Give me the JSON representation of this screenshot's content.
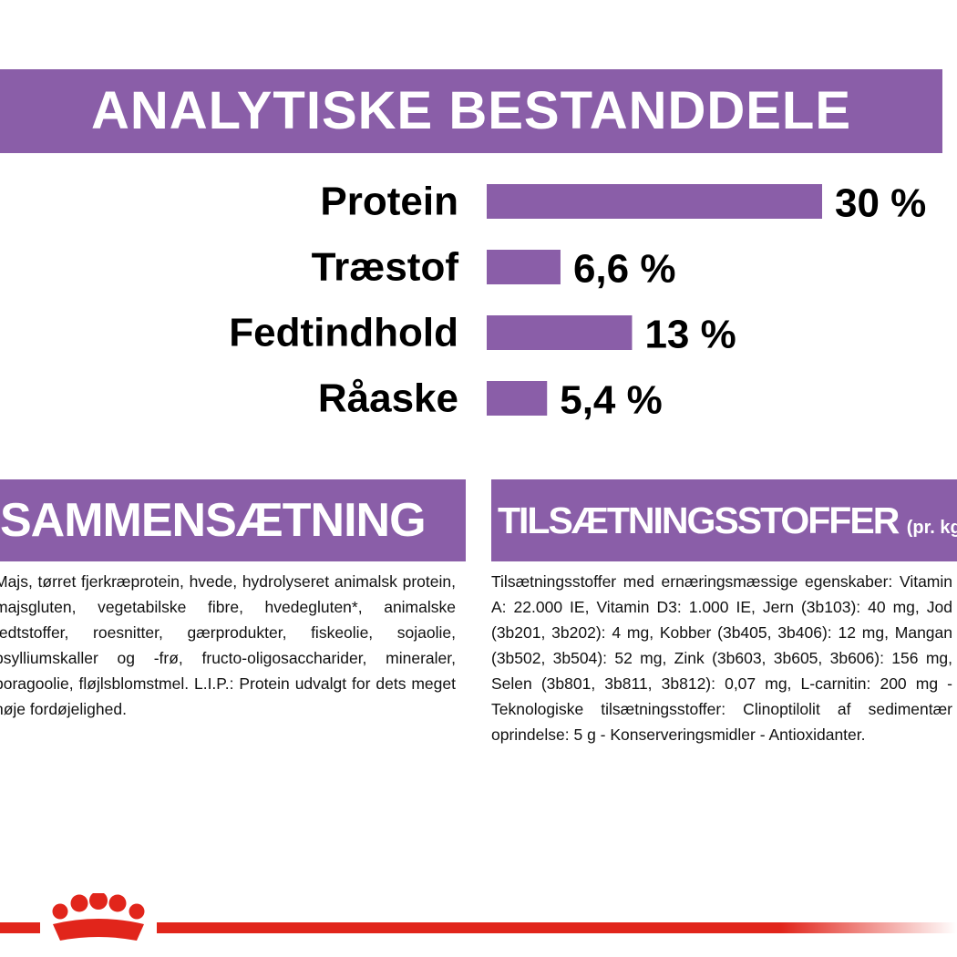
{
  "banner": {
    "title": "ANALYTISKE BESTANDDELE"
  },
  "chart_data": {
    "type": "bar",
    "orientation": "horizontal",
    "categories": [
      "Protein",
      "Træstof",
      "Fedtindhold",
      "Råaske"
    ],
    "values": [
      30,
      6.6,
      13,
      5.4
    ],
    "value_labels": [
      "30 %",
      "6,6 %",
      "13 %",
      "5,4 %"
    ],
    "unit": "%",
    "xlim": [
      0,
      30
    ],
    "grid": false,
    "legend": "none",
    "bar_color": "#8a5ea8"
  },
  "composition": {
    "title": "SAMMENSÆTNING",
    "text": "Majs, tørret fjerkræprotein, hvede, hydrolyseret animalsk protein, majsgluten, vegetabilske fibre, hvedegluten*, animalske fedtstoffer, roesnitter, gærprodukter, fiskeolie, sojaolie, psylliumskaller og -frø, fructo-oligosaccharider, mineraler, boragoolie, fløjlsblomstmel. L.I.P.: Protein udvalgt for dets meget høje fordøjelighed."
  },
  "additives": {
    "title": "TILSÆTNINGSSTOFFER",
    "unit": "(pr. kg)",
    "text": "Tilsætningsstoffer med ernæringsmæssige egenskaber: Vitamin A: 22.000 IE, Vitamin D3: 1.000 IE, Jern (3b103): 40 mg, Jod (3b201, 3b202): 4 mg, Kobber (3b405, 3b406): 12 mg, Mangan (3b502, 3b504): 52 mg, Zink (3b603, 3b605, 3b606): 156 mg, Selen (3b801, 3b811, 3b812): 0,07 mg, L-carnitin: 200 mg - Teknologiske tilsætningsstoffer: Clinoptilolit af sedimentær oprindelse: 5 g - Konserveringsmidler - Antioxidanter."
  },
  "footer": {
    "logo_icon": "crown-logo-icon",
    "line_color": "#e1251b"
  }
}
